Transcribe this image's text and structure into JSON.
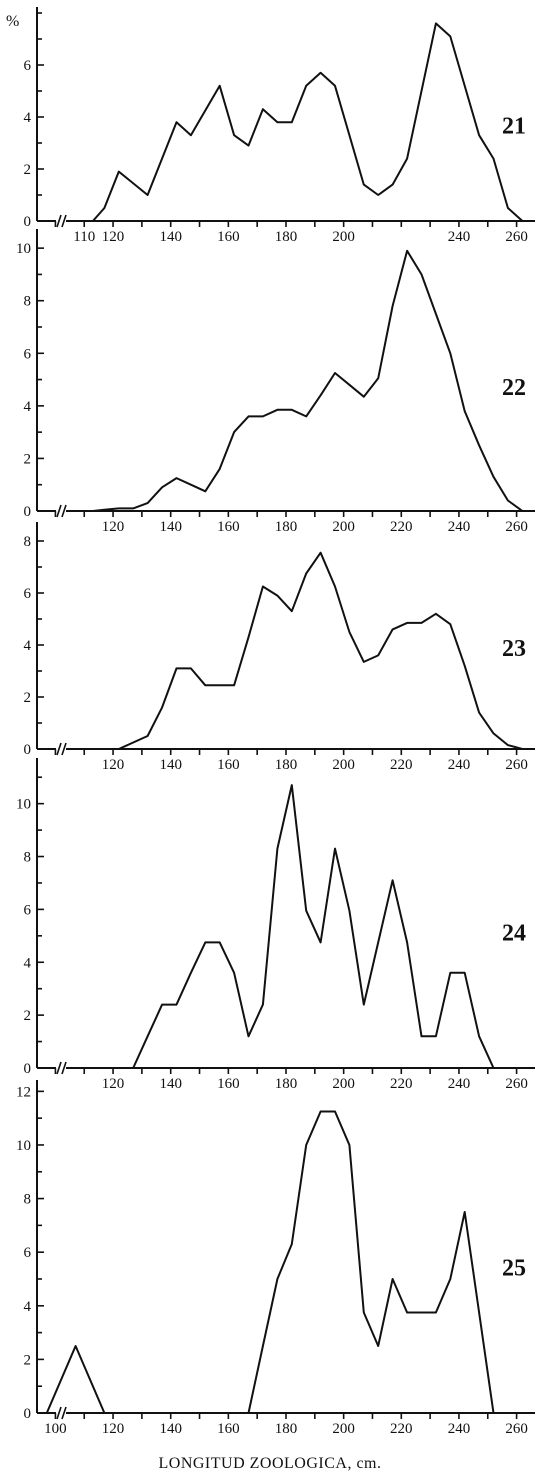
{
  "figure": {
    "unit_label": "%",
    "xlabel": "LONGITUD ZOOLOGICA, cm."
  },
  "chart_data": [
    {
      "type": "line",
      "panel_label": "21",
      "yticks": [
        0,
        2,
        4,
        6
      ],
      "ylim": [
        0,
        8
      ],
      "xticks": [
        110,
        120,
        140,
        160,
        180,
        200,
        240,
        260
      ],
      "xlim": [
        95,
        265
      ],
      "axis_break": true,
      "x": [
        113,
        117,
        122,
        132,
        142,
        147,
        157,
        162,
        167,
        172,
        177,
        182,
        187,
        192,
        197,
        207,
        212,
        217,
        222,
        232,
        237,
        247,
        252,
        257,
        262
      ],
      "y": [
        0,
        0.5,
        1.9,
        1.0,
        3.8,
        3.3,
        5.2,
        3.3,
        2.9,
        4.3,
        3.8,
        3.8,
        5.2,
        5.7,
        5.2,
        1.4,
        1.0,
        1.4,
        2.4,
        7.6,
        7.1,
        3.3,
        2.4,
        0.5,
        0
      ]
    },
    {
      "type": "line",
      "panel_label": "22",
      "yticks": [
        0,
        2,
        4,
        6,
        8,
        10
      ],
      "ylim": [
        0,
        10.5
      ],
      "xticks": [
        120,
        140,
        160,
        180,
        200,
        220,
        240,
        260
      ],
      "xlim": [
        95,
        265
      ],
      "axis_break": true,
      "x": [
        113,
        117,
        122,
        127,
        132,
        137,
        142,
        147,
        152,
        157,
        162,
        167,
        172,
        177,
        182,
        187,
        192,
        197,
        202,
        207,
        212,
        217,
        222,
        227,
        232,
        237,
        242,
        247,
        252,
        257,
        262
      ],
      "y": [
        0,
        0.05,
        0.1,
        0.1,
        0.3,
        0.9,
        1.25,
        1.0,
        0.75,
        1.6,
        3.0,
        3.6,
        3.6,
        3.85,
        3.85,
        3.6,
        4.4,
        5.25,
        4.8,
        4.35,
        5.05,
        7.8,
        9.9,
        9.0,
        7.5,
        6.0,
        3.8,
        2.5,
        1.3,
        0.4,
        0
      ]
    },
    {
      "type": "line",
      "panel_label": "23",
      "yticks": [
        0,
        2,
        4,
        6,
        8
      ],
      "ylim": [
        0,
        8.5
      ],
      "xticks": [
        120,
        140,
        160,
        180,
        200,
        220,
        240,
        260
      ],
      "xlim": [
        95,
        265
      ],
      "axis_break": true,
      "x": [
        122,
        127,
        132,
        137,
        142,
        147,
        152,
        157,
        162,
        167,
        172,
        177,
        182,
        187,
        192,
        197,
        202,
        207,
        212,
        217,
        222,
        227,
        232,
        237,
        242,
        247,
        252,
        257,
        262
      ],
      "y": [
        0,
        0.25,
        0.5,
        1.6,
        3.1,
        3.1,
        2.45,
        2.45,
        2.45,
        4.3,
        6.25,
        5.9,
        5.3,
        6.75,
        7.55,
        6.25,
        4.5,
        3.35,
        3.6,
        4.6,
        4.85,
        4.85,
        5.2,
        4.8,
        3.2,
        1.4,
        0.6,
        0.15,
        0
      ]
    },
    {
      "type": "line",
      "panel_label": "24",
      "yticks": [
        0,
        2,
        4,
        6,
        8,
        10
      ],
      "ylim": [
        0,
        11.5
      ],
      "xticks": [
        120,
        140,
        160,
        180,
        200,
        220,
        240,
        260
      ],
      "xlim": [
        95,
        265
      ],
      "axis_break": true,
      "x": [
        127,
        132,
        137,
        142,
        147,
        152,
        157,
        162,
        167,
        172,
        177,
        182,
        187,
        192,
        197,
        202,
        207,
        212,
        217,
        222,
        227,
        232,
        237,
        242,
        247,
        252
      ],
      "y": [
        0,
        1.2,
        2.4,
        2.4,
        3.6,
        4.75,
        4.75,
        3.6,
        1.2,
        2.4,
        8.3,
        10.7,
        5.95,
        4.75,
        8.3,
        5.95,
        2.4,
        4.75,
        7.1,
        4.75,
        1.2,
        1.2,
        3.6,
        3.6,
        1.2,
        0
      ]
    },
    {
      "type": "line",
      "panel_label": "25",
      "yticks": [
        0,
        2,
        4,
        6,
        8,
        10,
        12
      ],
      "ylim": [
        0,
        12.2
      ],
      "xticks": [
        100,
        120,
        140,
        160,
        180,
        200,
        220,
        240,
        260
      ],
      "xlim": [
        95,
        265
      ],
      "axis_break": true,
      "x": [
        97,
        107,
        117,
        167,
        172,
        177,
        182,
        187,
        192,
        197,
        202,
        207,
        212,
        217,
        222,
        227,
        232,
        237,
        242,
        247,
        252
      ],
      "y": [
        0,
        2.5,
        0,
        0,
        2.5,
        5.0,
        6.3,
        10.0,
        11.25,
        11.25,
        10.0,
        3.75,
        2.5,
        5.0,
        3.75,
        3.75,
        3.75,
        5.0,
        7.5,
        3.75,
        0
      ]
    }
  ]
}
